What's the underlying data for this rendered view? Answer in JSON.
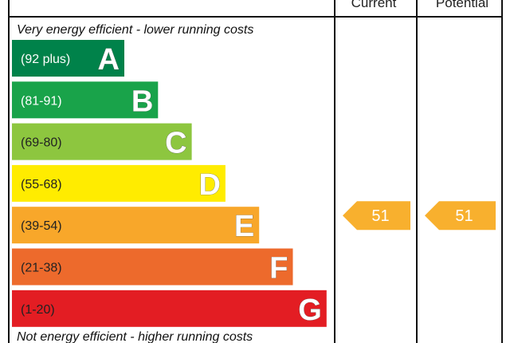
{
  "chart_data": {
    "type": "bar",
    "columns": [
      "Current",
      "Potential"
    ],
    "top_note": "Very energy efficient - lower running costs",
    "bottom_note": "Not energy efficient - higher running costs",
    "bands": [
      {
        "letter": "A",
        "range": "(92 plus)",
        "color": "#00824a",
        "range_color": "#ffffff"
      },
      {
        "letter": "B",
        "range": "(81-91)",
        "color": "#19a34a",
        "range_color": "#ffffff"
      },
      {
        "letter": "C",
        "range": "(69-80)",
        "color": "#8dc63f",
        "range_color": "#222222"
      },
      {
        "letter": "D",
        "range": "(55-68)",
        "color": "#ffec00",
        "range_color": "#222222"
      },
      {
        "letter": "E",
        "range": "(39-54)",
        "color": "#f8a72a",
        "range_color": "#222222"
      },
      {
        "letter": "F",
        "range": "(21-38)",
        "color": "#ed6a2c",
        "range_color": "#222222"
      },
      {
        "letter": "G",
        "range": "(1-20)",
        "color": "#e31d23",
        "range_color": "#222222"
      }
    ],
    "ratings": {
      "current": {
        "value": 51,
        "band": "E",
        "color": "#f8b02e"
      },
      "potential": {
        "value": 51,
        "band": "E",
        "color": "#f8b02e"
      }
    }
  }
}
